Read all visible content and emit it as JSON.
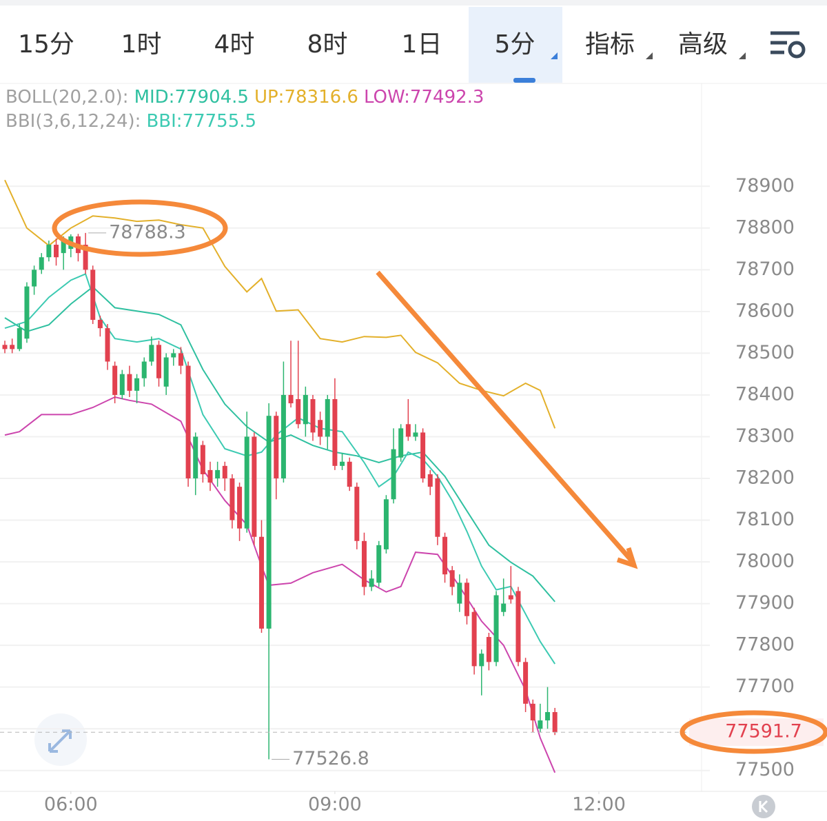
{
  "tabs": [
    "15分",
    "1时",
    "4时",
    "8时",
    "1日",
    "5分",
    "指标",
    "高级"
  ],
  "active_tab": 5,
  "chart_data": {
    "type": "candlestick",
    "indicator_labels": [
      "BOLL(20,2.0):",
      "BBI(3,6,12,24):"
    ],
    "categories": [
      null,
      null,
      null,
      null,
      null,
      null,
      null,
      null,
      null,
      null,
      null,
      null,
      null,
      null,
      null,
      null,
      null,
      null,
      null,
      null,
      null,
      null,
      null,
      null,
      null,
      null,
      null,
      null,
      null,
      null,
      null,
      null,
      null,
      null,
      null,
      null,
      null,
      null,
      null,
      null,
      null,
      null,
      null,
      null,
      null,
      null,
      null,
      null,
      null,
      null,
      null,
      null,
      null,
      null,
      null,
      null,
      null,
      null,
      null,
      null,
      null,
      null,
      null,
      null,
      null,
      null,
      null,
      null,
      null,
      null,
      null,
      null,
      null,
      null,
      null,
      null
    ],
    "open": [
      78520,
      78520,
      78510,
      78535,
      78660,
      78700,
      78730,
      78760,
      78740,
      78750,
      78780,
      78760,
      78700,
      78580,
      78560,
      78470,
      78400,
      78450,
      78410,
      78440,
      78480,
      78520,
      78420,
      78490,
      78500,
      78470,
      78200,
      78280,
      78220,
      78200,
      78230,
      78200,
      78180,
      78080,
      78300,
      78060,
      77840,
      78350,
      78200,
      78400,
      78390,
      78330,
      78390,
      78340,
      78300,
      78390,
      78230,
      78240,
      78180,
      78050,
      77940,
      77950,
      78030,
      78150,
      78250,
      78330,
      78300,
      78310,
      78210,
      78200,
      78060,
      77980,
      77900,
      77950,
      77880,
      77750,
      77820,
      77760,
      77880,
      77920,
      77930,
      77760,
      77660,
      77600,
      77620,
      77640
    ],
    "high": [
      78530,
      78535,
      78570,
      78670,
      78710,
      78740,
      78770,
      78775,
      78780,
      78785,
      78786,
      78788.3,
      78710,
      78590,
      78570,
      78480,
      78460,
      78470,
      78450,
      78490,
      78540,
      78530,
      78500,
      78510,
      78515,
      78480,
      78310,
      78290,
      78240,
      78240,
      78240,
      78210,
      78190,
      78360,
      78310,
      78100,
      78380,
      78360,
      78480,
      78530,
      78530,
      78420,
      78400,
      78360,
      78400,
      78440,
      78260,
      78250,
      78190,
      78070,
      77980,
      78050,
      78160,
      78320,
      78330,
      78390,
      78330,
      78320,
      78220,
      78210,
      78070,
      77990,
      77970,
      77960,
      77890,
      77790,
      77830,
      77930,
      77960,
      77990,
      77940,
      77770,
      77670,
      77660,
      77700,
      77650
    ],
    "low": [
      78500,
      78500,
      78505,
      78525,
      78640,
      78690,
      78720,
      78710,
      78700,
      78730,
      78720,
      78690,
      78570,
      78540,
      78460,
      78380,
      78390,
      78395,
      78380,
      78420,
      78470,
      78420,
      78400,
      78470,
      78450,
      78180,
      78160,
      78190,
      78170,
      78180,
      78170,
      78080,
      78050,
      78070,
      78040,
      77830,
      77526.8,
      78150,
      78190,
      78370,
      78320,
      78300,
      78290,
      78280,
      78270,
      78220,
      78220,
      78170,
      78030,
      77920,
      77930,
      77940,
      78020,
      78140,
      78240,
      78290,
      78290,
      78190,
      78160,
      78040,
      77950,
      77920,
      77880,
      77850,
      77730,
      77680,
      77740,
      77750,
      77870,
      77900,
      77750,
      77640,
      77592,
      77592,
      77600,
      77585
    ],
    "close": [
      78510,
      78510,
      78560,
      78660,
      78700,
      78730,
      78760,
      78730,
      78770,
      78780,
      78740,
      78700,
      78580,
      78560,
      78480,
      78400,
      78450,
      78410,
      78440,
      78480,
      78520,
      78440,
      78490,
      78500,
      78470,
      78200,
      78300,
      78210,
      78190,
      78220,
      78200,
      78100,
      78080,
      78300,
      78060,
      77840,
      78350,
      78200,
      78400,
      78380,
      78330,
      78400,
      78310,
      78300,
      78390,
      78230,
      78240,
      78180,
      78050,
      77940,
      77960,
      78040,
      78150,
      78270,
      78320,
      78300,
      78310,
      78200,
      78180,
      78060,
      77970,
      77940,
      77950,
      77870,
      77750,
      77780,
      77760,
      77920,
      77900,
      77910,
      77760,
      77660,
      77620,
      77620,
      77640,
      77591.7
    ],
    "up_color": "#2bb56f",
    "down_color": "#e2414f",
    "series": [
      {
        "name": "MID:77904.5",
        "color": "#2fc0a0",
        "x": [
          0,
          3,
          6,
          9,
          12,
          15,
          18,
          21,
          24,
          27,
          30,
          33,
          36,
          39,
          42,
          45,
          48,
          51,
          54,
          57,
          60,
          63,
          66,
          69,
          72,
          75
        ],
        "values": [
          78585,
          78552,
          78568,
          78618,
          78659,
          78609,
          78601,
          78593,
          78568,
          78461,
          78378,
          78324,
          78287,
          78304,
          78279,
          78263,
          78254,
          78238,
          78254,
          78263,
          78205,
          78122,
          78040,
          77999,
          77966,
          77904.5
        ]
      },
      {
        "name": "UP:78316.6",
        "color": "#e3b02a",
        "x": [
          0,
          3,
          6,
          9,
          12,
          15,
          18,
          21,
          24,
          27,
          30,
          33,
          35,
          37,
          40,
          43,
          46,
          49,
          52,
          54,
          56,
          59,
          62,
          65,
          68,
          71,
          73,
          75
        ],
        "values": [
          78915,
          78800,
          78758,
          78800,
          78829,
          78824,
          78816,
          78819,
          78808,
          78800,
          78708,
          78647,
          78679,
          78601,
          78604,
          78535,
          78527,
          78540,
          78538,
          78543,
          78502,
          78477,
          78428,
          78411,
          78398,
          78428,
          78411,
          78320
        ]
      },
      {
        "name": "LOW:77492.3",
        "color": "#cc45ad",
        "x": [
          0,
          2,
          5,
          9,
          12,
          15,
          17,
          20,
          24,
          27,
          30,
          33,
          35,
          36,
          39,
          42,
          46,
          49,
          52,
          54,
          56,
          59,
          62,
          65,
          68,
          71,
          73,
          75
        ],
        "values": [
          78304,
          78312,
          78353,
          78353,
          78370,
          78395,
          78387,
          78378,
          78337,
          78221,
          78147,
          78089,
          77990,
          77944,
          77949,
          77974,
          77994,
          77957,
          77928,
          77941,
          78023,
          78018,
          77941,
          77858,
          77800,
          77693,
          77578,
          77495
        ]
      },
      {
        "name": "BBI:77755.5",
        "color": "#3ccab2",
        "x": [
          0,
          3,
          6,
          9,
          11,
          13,
          15,
          18,
          21,
          24,
          27,
          30,
          33,
          35,
          37,
          40,
          43,
          46,
          49,
          51,
          53,
          55,
          57,
          59,
          61,
          63,
          65,
          67,
          69,
          71,
          73,
          75
        ],
        "values": [
          78560,
          78576,
          78634,
          78675,
          78690,
          78585,
          78535,
          78527,
          78535,
          78510,
          78353,
          78271,
          78254,
          78263,
          78304,
          78345,
          78320,
          78312,
          78238,
          78180,
          78205,
          78263,
          78246,
          78205,
          78147,
          78073,
          77990,
          77933,
          77941,
          77875,
          77809,
          77755.5
        ]
      }
    ],
    "annotations": [
      {
        "text": "78788.3",
        "x": 11,
        "y": 78788.3
      },
      {
        "text": "77526.8",
        "x": 36,
        "y": 77526.8
      }
    ],
    "last_price": {
      "value": 77591.7,
      "label": "77591.7"
    },
    "xlim": [
      -0.66,
      95
    ],
    "xticks": [
      {
        "value": 9,
        "label": "06:00"
      },
      {
        "value": 45,
        "label": "09:00"
      },
      {
        "value": 81,
        "label": "12:00"
      }
    ],
    "ylim": [
      77450,
      79140
    ],
    "yticks": [
      77500,
      77600,
      77700,
      77800,
      77900,
      78000,
      78100,
      78200,
      78300,
      78400,
      78500,
      78600,
      78700,
      78800,
      78900
    ],
    "grid": true
  }
}
